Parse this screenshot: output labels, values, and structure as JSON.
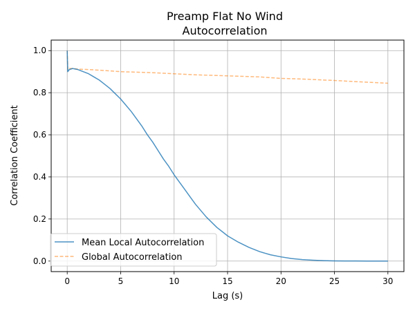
{
  "chart_data": {
    "type": "line",
    "title_lines": [
      "Preamp Flat No Wind",
      "Autocorrelation"
    ],
    "xlabel": "Lag (s)",
    "ylabel": "Correlation Coefficient",
    "xlim": [
      -1.5,
      31.5
    ],
    "ylim": [
      -0.05,
      1.05
    ],
    "xticks": [
      0,
      5,
      10,
      15,
      20,
      25,
      30
    ],
    "yticks": [
      0.0,
      0.2,
      0.4,
      0.6,
      0.8,
      1.0
    ],
    "x_tick_labels": [
      "0",
      "5",
      "10",
      "15",
      "20",
      "25",
      "30"
    ],
    "y_tick_labels": [
      "0.0",
      "0.2",
      "0.4",
      "0.6",
      "0.8",
      "1.0"
    ],
    "grid": true,
    "legend": "lower-left",
    "series": [
      {
        "name": "Mean Local Autocorrelation",
        "color": "#1f77b4",
        "style": "solid",
        "x": [
          0,
          0.05,
          0.2,
          0.5,
          1,
          1.5,
          2,
          2.5,
          3,
          3.5,
          4,
          4.5,
          5,
          5.5,
          6,
          6.5,
          7,
          7.5,
          8,
          8.5,
          9,
          9.5,
          10,
          10.5,
          11,
          11.5,
          12,
          12.5,
          13,
          13.5,
          14,
          14.5,
          15,
          16,
          17,
          18,
          19,
          20,
          21,
          22,
          23,
          24,
          25,
          26,
          27,
          28,
          29,
          30
        ],
        "y": [
          1.0,
          0.9,
          0.91,
          0.915,
          0.91,
          0.9,
          0.89,
          0.875,
          0.86,
          0.84,
          0.82,
          0.795,
          0.77,
          0.74,
          0.71,
          0.675,
          0.64,
          0.6,
          0.565,
          0.525,
          0.485,
          0.45,
          0.41,
          0.375,
          0.34,
          0.305,
          0.27,
          0.24,
          0.21,
          0.185,
          0.16,
          0.14,
          0.12,
          0.09,
          0.065,
          0.045,
          0.03,
          0.02,
          0.012,
          0.007,
          0.004,
          0.002,
          0.001,
          0.0005,
          0.0003,
          0.0002,
          0.0001,
          0.0
        ]
      },
      {
        "name": "Global Autocorrelation",
        "color": "#ff7f0e",
        "style": "dashed",
        "x": [
          0,
          0.05,
          0.2,
          0.5,
          1,
          2,
          3,
          5,
          8,
          10,
          12,
          15,
          18,
          20,
          22,
          25,
          28,
          30
        ],
        "y": [
          1.0,
          0.91,
          0.915,
          0.915,
          0.912,
          0.91,
          0.907,
          0.9,
          0.895,
          0.89,
          0.885,
          0.88,
          0.875,
          0.868,
          0.865,
          0.858,
          0.85,
          0.845
        ]
      }
    ]
  }
}
